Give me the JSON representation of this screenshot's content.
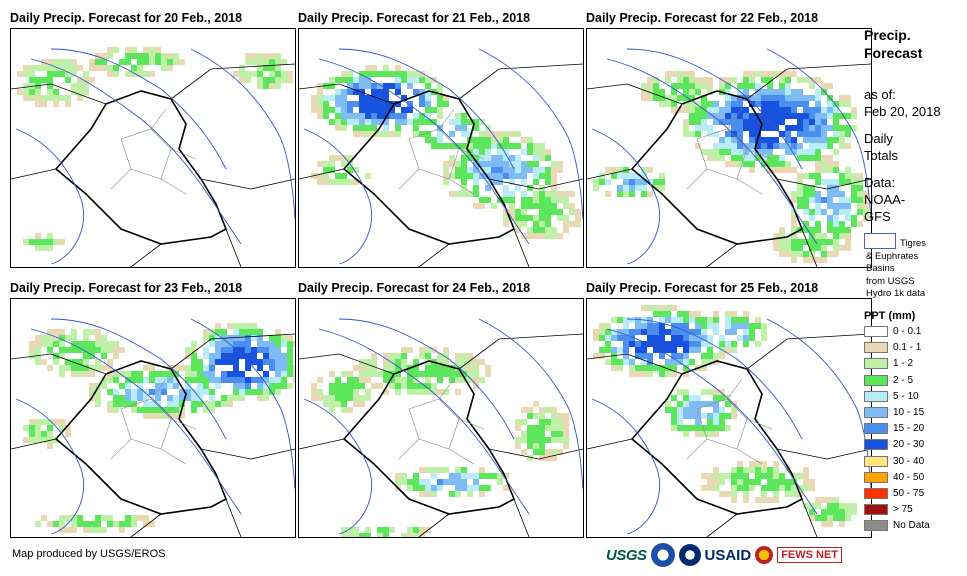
{
  "panels": [
    {
      "title": "Daily Precip. Forecast for 20 Feb., 2018"
    },
    {
      "title": "Daily Precip. Forecast for 21 Feb., 2018"
    },
    {
      "title": "Daily Precip. Forecast for 22 Feb., 2018"
    },
    {
      "title": "Daily Precip. Forecast for 23 Feb., 2018"
    },
    {
      "title": "Daily Precip. Forecast for 24 Feb., 2018"
    },
    {
      "title": "Daily Precip. Forecast for 25 Feb., 2018"
    }
  ],
  "side": {
    "title": "Precip. Forecast",
    "asof_label": "as of:",
    "asof_date": "Feb 20, 2018",
    "totals": "Daily Totals",
    "data_label": "Data:",
    "data_source": "NOAA-GFS"
  },
  "basins": {
    "line1": "Tigres",
    "line2": "& Euphrates",
    "line3": "Basins",
    "line4": "from USGS",
    "line5": "Hydro 1k data"
  },
  "legend": {
    "title": "PPT (mm)",
    "items": [
      {
        "label": "0 - 0.1",
        "color": "#ffffff"
      },
      {
        "label": "0.1 - 1",
        "color": "#e8d8b4"
      },
      {
        "label": "1 - 2",
        "color": "#bff0a8"
      },
      {
        "label": "2 - 5",
        "color": "#5ce65c"
      },
      {
        "label": "5 - 10",
        "color": "#b8ecf8"
      },
      {
        "label": "10 - 15",
        "color": "#7fbcf6"
      },
      {
        "label": "15 - 20",
        "color": "#4a8ef0"
      },
      {
        "label": "20 - 30",
        "color": "#1a52e0"
      },
      {
        "label": "30 - 40",
        "color": "#ffe680"
      },
      {
        "label": "40 - 50",
        "color": "#ffa500"
      },
      {
        "label": "50 - 75",
        "color": "#ff3300"
      },
      {
        "label": "> 75",
        "color": "#a01010"
      },
      {
        "label": "No Data",
        "color": "#8c8c8c"
      }
    ]
  },
  "footer": "Map produced by USGS/EROS",
  "logos": {
    "usgs": "USGS",
    "usaid": "USAID",
    "fews": "FEWS NET"
  }
}
